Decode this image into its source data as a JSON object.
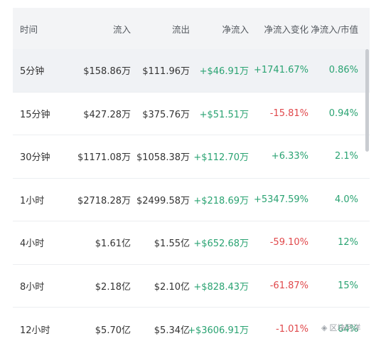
{
  "columns": [
    "时间",
    "流入",
    "流出",
    "净流入",
    "净流入变化",
    "净流入/市值"
  ],
  "rows": [
    {
      "time": "5分钟",
      "inflow": "$158.86万",
      "outflow": "$111.96万",
      "net": "+$46.91万",
      "change": "+1741.67%",
      "ratio": "0.86%"
    },
    {
      "time": "15分钟",
      "inflow": "$427.28万",
      "outflow": "$375.76万",
      "net": "+$51.51万",
      "change": "-15.81%",
      "ratio": "0.94%"
    },
    {
      "time": "30分钟",
      "inflow": "$1171.08万",
      "outflow": "$1058.38万",
      "net": "+$112.70万",
      "change": "+6.33%",
      "ratio": "2.1%"
    },
    {
      "time": "1小时",
      "inflow": "$2718.28万",
      "outflow": "$2499.58万",
      "net": "+$218.69万",
      "change": "+5347.59%",
      "ratio": "4.0%"
    },
    {
      "time": "4小时",
      "inflow": "$1.61亿",
      "outflow": "$1.55亿",
      "net": "+$652.68万",
      "change": "-59.10%",
      "ratio": "12%"
    },
    {
      "time": "8小时",
      "inflow": "$2.18亿",
      "outflow": "$2.10亿",
      "net": "+$828.43万",
      "change": "-61.87%",
      "ratio": "15%"
    },
    {
      "time": "12小时",
      "inflow": "$5.70亿",
      "outflow": "$5.34亿",
      "net": "+$3606.91万",
      "change": "-1.01%",
      "ratio": "64%"
    }
  ],
  "colors": {
    "positive": "#2aa372",
    "negative": "#e0484b",
    "header_bg": "#f3f4f6",
    "highlight_bg": "#f0f2f5"
  },
  "watermark": {
    "icon": "wechat-icon",
    "text": "区块阿洋"
  }
}
